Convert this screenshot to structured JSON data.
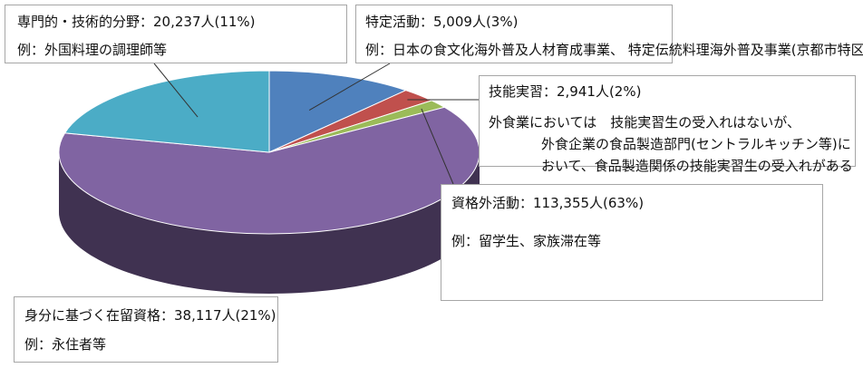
{
  "chart_data": {
    "type": "pie",
    "style": "3d",
    "title": "",
    "legend": "none",
    "slices": [
      {
        "label": "専門的・技術的分野",
        "value": 20237,
        "percent": 11,
        "color": "#4f81bd",
        "summary": "専門的・技術的分野：20,237人(11%)",
        "note_lines": [
          "例：外国料理の調理師等"
        ]
      },
      {
        "label": "特定活動",
        "value": 5009,
        "percent": 3,
        "color": "#c0504d",
        "summary": "特定活動：5,009人(3%)",
        "note_lines": [
          "例：日本の食文化海外普及人材育成事業、",
          "特定伝統料理海外普及事業(京都市特区)等"
        ]
      },
      {
        "label": "技能実習",
        "value": 2941,
        "percent": 2,
        "color": "#9bbb59",
        "summary": "技能実習：2,941人(2%)",
        "note_lines": [
          "外食業においては　技能実習生の受入れはないが、",
          "外食企業の食品製造部門(セントラルキッチン等)に",
          "おいて、食品製造関係の技能実習生の受入れがある"
        ]
      },
      {
        "label": "資格外活動",
        "value": 113355,
        "percent": 63,
        "color": "#8064a2",
        "summary": "資格外活動：113,355人(63%)",
        "note_lines": [
          "例：留学生、家族滞在等"
        ]
      },
      {
        "label": "身分に基づく在留資格",
        "value": 38117,
        "percent": 21,
        "color": "#4bacc6",
        "summary": "身分に基づく在留資格：38,117人(21%)",
        "note_lines": [
          "例：永住者等"
        ]
      }
    ]
  }
}
